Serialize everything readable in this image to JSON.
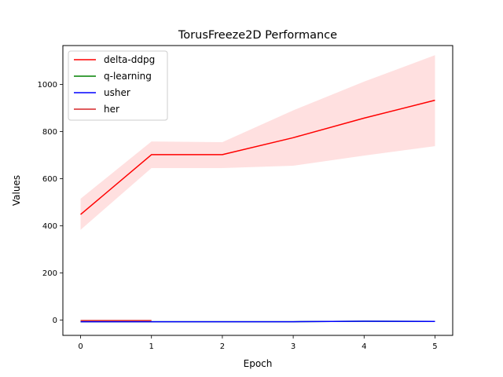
{
  "chart_data": {
    "type": "line",
    "title": "TorusFreeze2D Performance",
    "xlabel": "Epoch",
    "ylabel": "Values",
    "xlim": [
      -0.25,
      5.25
    ],
    "ylim": [
      -65,
      1165
    ],
    "xticks": [
      0,
      1,
      2,
      3,
      4,
      5
    ],
    "yticks": [
      0,
      200,
      400,
      600,
      800,
      1000
    ],
    "grid": false,
    "legend_position": "upper left",
    "series": [
      {
        "name": "delta-ddpg",
        "color": "#ff0000",
        "x": [
          0,
          1,
          2,
          3,
          4,
          5
        ],
        "y": [
          448,
          702,
          702,
          774,
          857,
          933
        ],
        "band_lower": [
          383,
          645,
          645,
          655,
          698,
          738
        ],
        "band_upper": [
          515,
          758,
          755,
          890,
          1012,
          1124
        ],
        "band_color": "#ff0000",
        "band_opacity": 0.12
      },
      {
        "name": "q-learning",
        "color": "#008000",
        "x": [
          0,
          1,
          2,
          3,
          4,
          5
        ],
        "y": [
          -7,
          -7,
          -7,
          -7,
          -5,
          -6
        ]
      },
      {
        "name": "usher",
        "color": "#0000ff",
        "x": [
          0,
          1,
          2,
          3,
          4,
          5
        ],
        "y": [
          -7,
          -7,
          -7,
          -7,
          -5,
          -6
        ]
      },
      {
        "name": "her",
        "color": "#d62728",
        "x": [
          0,
          1
        ],
        "y": [
          -2,
          -2
        ]
      }
    ]
  }
}
